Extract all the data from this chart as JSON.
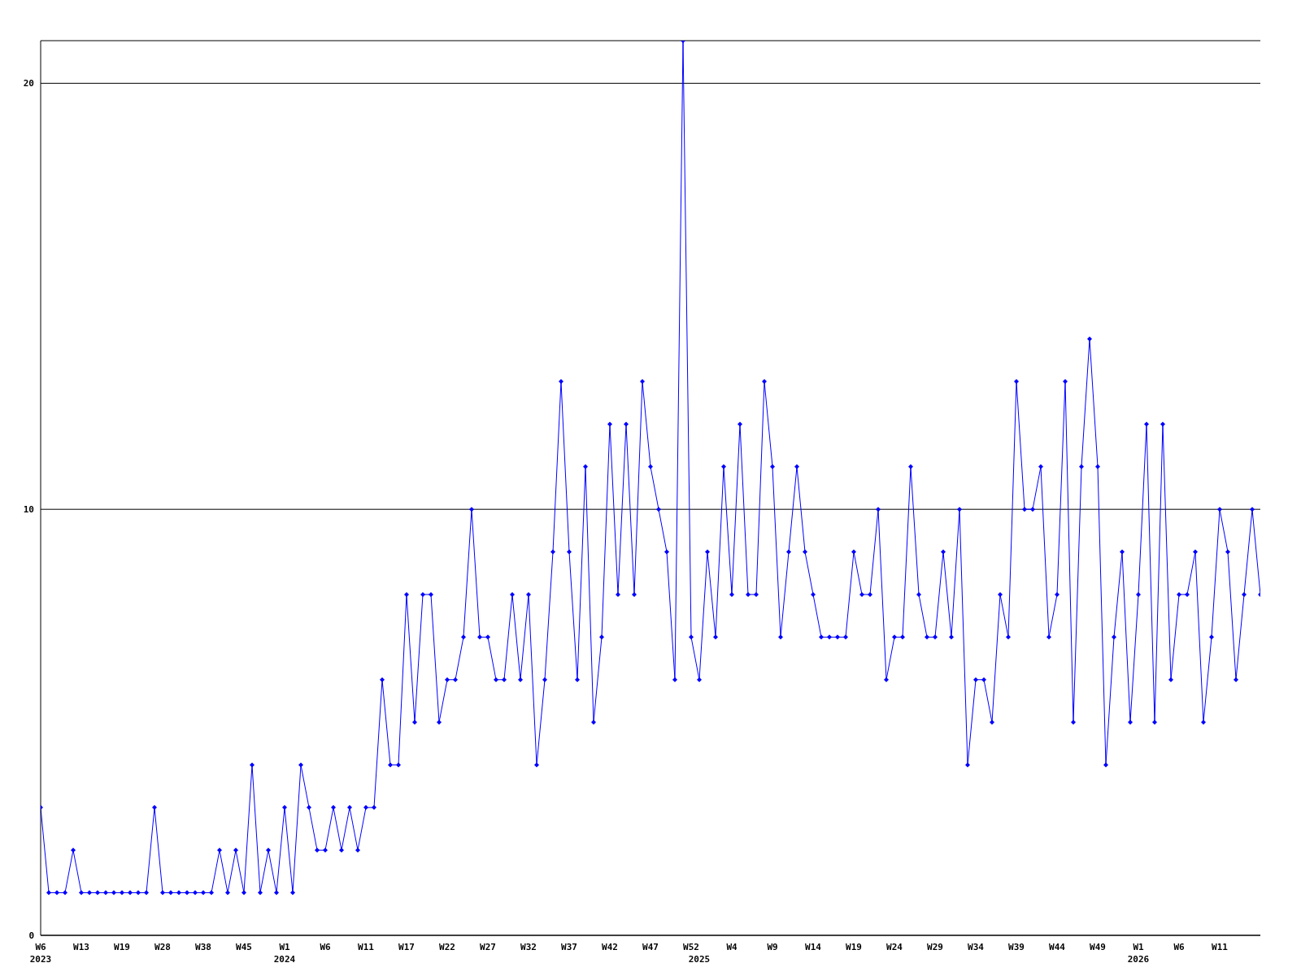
{
  "chart_data": {
    "type": "line",
    "categories": [
      "W6\n2023",
      null,
      null,
      null,
      null,
      "W13",
      null,
      null,
      null,
      null,
      "W19",
      null,
      null,
      null,
      null,
      "W28",
      null,
      null,
      null,
      null,
      "W38",
      null,
      null,
      null,
      null,
      "W45",
      null,
      null,
      null,
      null,
      "W1\n2024",
      null,
      null,
      null,
      null,
      "W6",
      null,
      null,
      null,
      null,
      "W11",
      null,
      null,
      null,
      null,
      "W17",
      null,
      null,
      null,
      null,
      "W22",
      null,
      null,
      null,
      null,
      "W27",
      null,
      null,
      null,
      null,
      "W32",
      null,
      null,
      null,
      null,
      "W37",
      null,
      null,
      null,
      null,
      "W42",
      null,
      null,
      null,
      null,
      "W47",
      null,
      null,
      null,
      null,
      "W52",
      "\n2025",
      null,
      null,
      null,
      "W4",
      null,
      null,
      null,
      null,
      "W9",
      null,
      null,
      null,
      null,
      "W14",
      null,
      null,
      null,
      null,
      "W19",
      null,
      null,
      null,
      null,
      "W24",
      null,
      null,
      null,
      null,
      "W29",
      null,
      null,
      null,
      null,
      "W34",
      null,
      null,
      null,
      null,
      "W39",
      null,
      null,
      null,
      null,
      "W44",
      null,
      null,
      null,
      null,
      "W49",
      null,
      null,
      null,
      null,
      "W1\n2026",
      null,
      null,
      null,
      null,
      "W6",
      null,
      null,
      null,
      null,
      "W11",
      null,
      null,
      null,
      null,
      null
    ],
    "series": [
      {
        "color": "#0000ff",
        "values": [
          3,
          1,
          1,
          1,
          2,
          1,
          1,
          1,
          1,
          1,
          1,
          1,
          1,
          1,
          3,
          1,
          1,
          1,
          1,
          1,
          1,
          1,
          2,
          1,
          2,
          1,
          4,
          1,
          2,
          1,
          3,
          1,
          4,
          3,
          2,
          2,
          3,
          2,
          3,
          2,
          3,
          3,
          6,
          4,
          4,
          8,
          5,
          8,
          8,
          5,
          6,
          6,
          7,
          10,
          7,
          7,
          6,
          6,
          8,
          6,
          8,
          4,
          6,
          9,
          13,
          9,
          6,
          11,
          5,
          7,
          12,
          8,
          12,
          8,
          13,
          11,
          10,
          9,
          6,
          21,
          7,
          6,
          9,
          7,
          11,
          8,
          12,
          8,
          8,
          13,
          11,
          7,
          9,
          11,
          9,
          8,
          7,
          7,
          7,
          7,
          9,
          8,
          8,
          10,
          6,
          7,
          7,
          11,
          8,
          7,
          7,
          9,
          7,
          10,
          4,
          6,
          6,
          5,
          8,
          7,
          13,
          10,
          10,
          11,
          7,
          8,
          13,
          5,
          11,
          14,
          11,
          4,
          7,
          9,
          5,
          8,
          12,
          5,
          12,
          6,
          8,
          8,
          9,
          5,
          7,
          10,
          9,
          6,
          8,
          10,
          8
        ]
      }
    ],
    "ylim": [
      0,
      21
    ],
    "yticks": [
      0,
      10,
      20
    ],
    "grid": "y",
    "marker": "diamond",
    "line_style": "solid"
  }
}
